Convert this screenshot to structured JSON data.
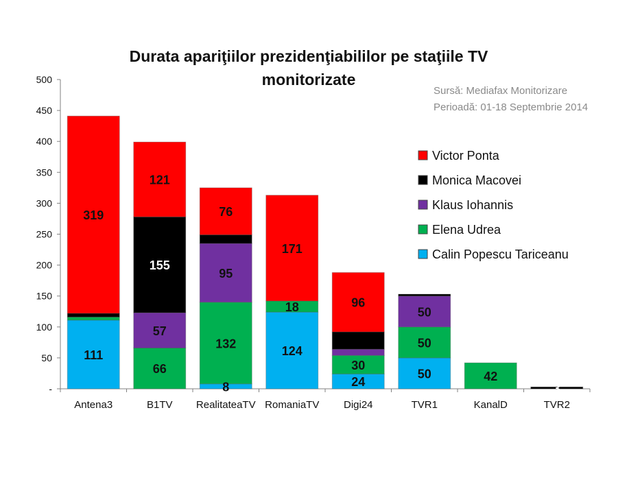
{
  "chart_data": {
    "type": "bar",
    "stacked": true,
    "title_line1": "Durata apariţiilor prezidenţiabililor pe staţiile TV",
    "title_line2": "monitorizate",
    "source_line1": "Sursă: Mediafax Monitorizare",
    "source_line2": "Perioadă: 01-18 Septembrie 2014",
    "categories": [
      "Antena3",
      "B1TV",
      "RealitateaTV",
      "RomaniaTV",
      "Digi24",
      "TVR1",
      "KanalD",
      "TVR2"
    ],
    "ylim": [
      0,
      500
    ],
    "yticks": [
      0,
      50,
      100,
      150,
      200,
      250,
      300,
      350,
      400,
      450,
      500
    ],
    "ytick_labels": [
      "-",
      "50",
      "100",
      "150",
      "200",
      "250",
      "300",
      "350",
      "400",
      "450",
      "500"
    ],
    "xlabel": "",
    "ylabel": "",
    "grid": false,
    "legend_position": "right",
    "series": [
      {
        "name": "Calin Popescu Tariceanu",
        "color": "#00B0F0",
        "values": [
          111,
          0,
          8,
          124,
          24,
          50,
          0,
          0
        ],
        "labels": [
          "111",
          "",
          "8",
          "124",
          "24",
          "50",
          "",
          ""
        ]
      },
      {
        "name": "Elena Udrea",
        "color": "#00B050",
        "values": [
          5,
          66,
          132,
          18,
          30,
          50,
          42,
          0
        ],
        "labels": [
          "",
          "66",
          "132",
          "18",
          "30",
          "50",
          "42",
          ""
        ]
      },
      {
        "name": "Klaus Iohannis",
        "color": "#7030A0",
        "values": [
          0,
          57,
          95,
          0,
          10,
          50,
          0,
          0
        ],
        "labels": [
          "",
          "57",
          "95",
          "",
          "",
          "50",
          "",
          ""
        ]
      },
      {
        "name": "Monica Macovei",
        "color": "#000000",
        "values": [
          6,
          155,
          14,
          0,
          28,
          3,
          0,
          3
        ],
        "labels": [
          "",
          "155",
          "",
          "",
          "",
          "",
          "",
          "3"
        ]
      },
      {
        "name": "Victor Ponta",
        "color": "#FF0000",
        "values": [
          319,
          121,
          76,
          171,
          96,
          0,
          0,
          0
        ],
        "labels": [
          "319",
          "121",
          "76",
          "171",
          "96",
          "",
          "",
          ""
        ]
      }
    ],
    "legend_order": [
      "Victor Ponta",
      "Monica Macovei",
      "Klaus Iohannis",
      "Elena Udrea",
      "Calin Popescu Tariceanu"
    ]
  }
}
